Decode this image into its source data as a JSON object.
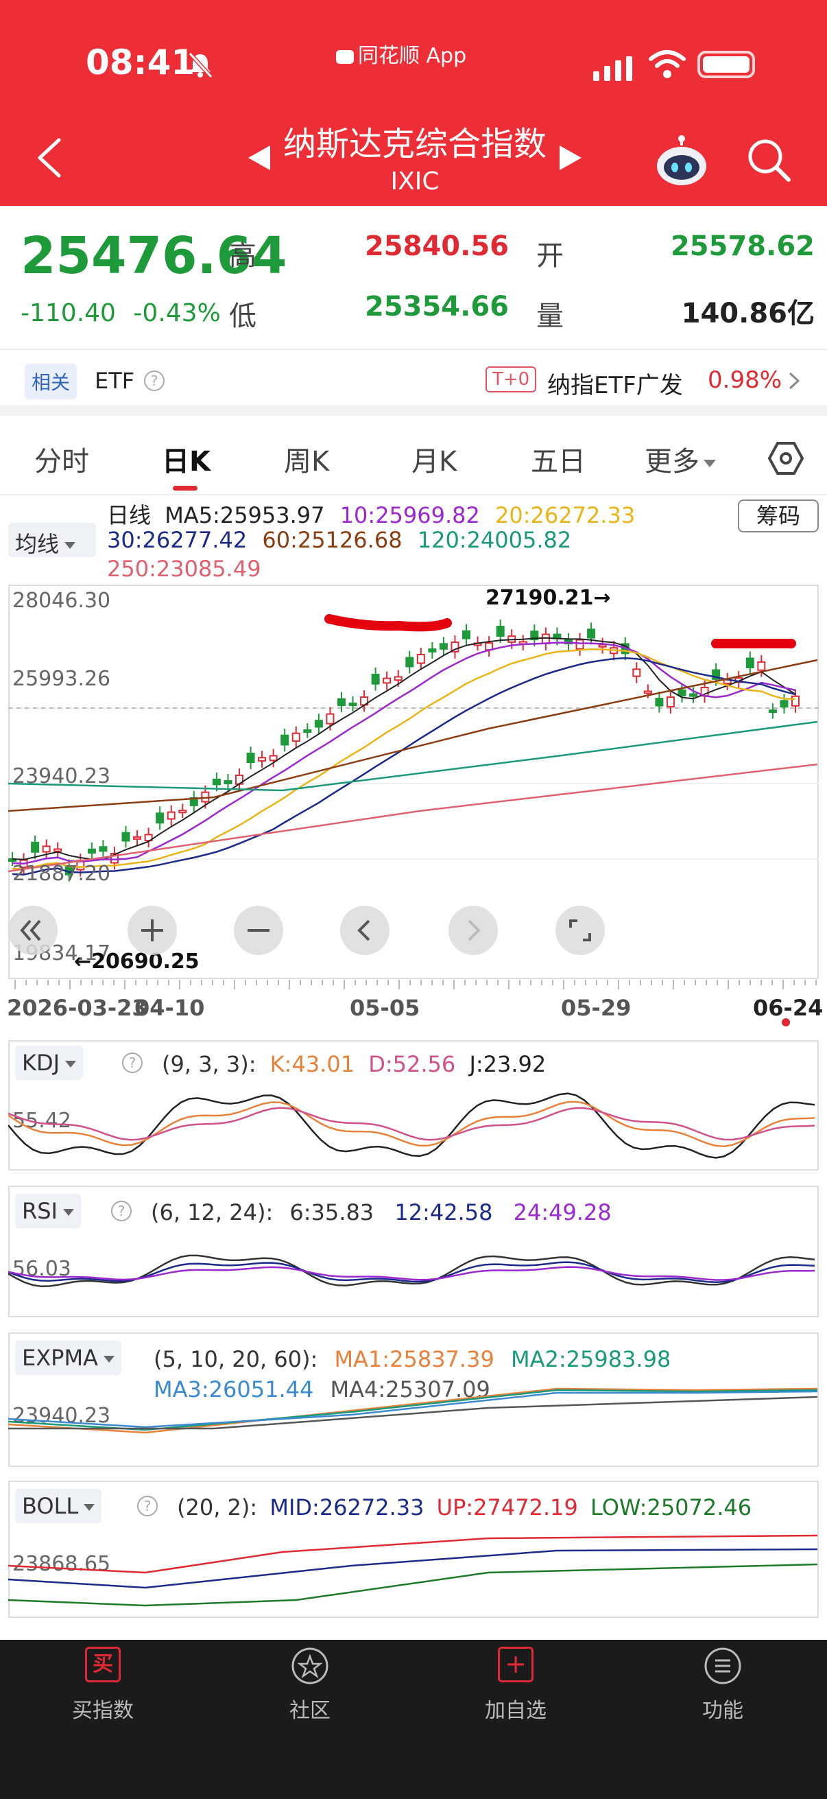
{
  "status_bar": {
    "time": "08:41",
    "app_label": "同花顺 App"
  },
  "header": {
    "title": "纳斯达克综合指数",
    "subtitle": "IXIC"
  },
  "quote": {
    "price": "25476.64",
    "change": "-110.40",
    "change_pct": "-0.43%",
    "high_label": "高",
    "high": "25840.56",
    "open_label": "开",
    "open": "25578.62",
    "low_label": "低",
    "low": "25354.66",
    "volume_label": "量",
    "volume": "140.86亿"
  },
  "etf_row": {
    "tag": "相关",
    "label": "ETF",
    "t0_tag": "T+0",
    "fund_name": "纳指ETF广发",
    "fund_pct": "0.98%"
  },
  "tabs": [
    "分时",
    "日K",
    "周K",
    "月K",
    "五日",
    "更多"
  ],
  "active_tab": "日K",
  "ma_select": "均线",
  "chip_button": "筹码",
  "ma_legend": {
    "period": "日线",
    "ma5": "MA5:25953.97",
    "ma10": "10:25969.82",
    "ma20": "20:26272.33",
    "ma30": "30:26277.42",
    "ma60": "60:25126.68",
    "ma120": "120:24005.82",
    "ma250": "250:23085.49"
  },
  "colors": {
    "red": "#e02a33",
    "green": "#1e9a3a",
    "ma5": "#222222",
    "ma10": "#9b28d0",
    "ma20": "#e8b417",
    "ma30": "#1b2a8a",
    "ma60": "#8b3d12",
    "ma120": "#1a9a7a",
    "ma250": "#e06070"
  },
  "main_axis": {
    "y_top": "28046.30",
    "y_mid1": "25993.26",
    "y_mid2": "23940.23",
    "y_low_partial": "21887.20",
    "y_bottom": "19834.17",
    "high_marker": "27190.21→",
    "low_marker": "←20690.25",
    "dates": [
      "2026-03-23",
      "04-10",
      "05-05",
      "05-29",
      "06-24"
    ]
  },
  "kdj": {
    "name": "KDJ",
    "params": "(9, 3, 3):",
    "k": "K:43.01",
    "d": "D:52.56",
    "j": "J:23.92",
    "axis": "55.42"
  },
  "rsi": {
    "name": "RSI",
    "params": "(6, 12, 24):",
    "r6": "6:35.83",
    "r12": "12:42.58",
    "r24": "24:49.28",
    "axis": "56.03"
  },
  "expma": {
    "name": "EXPMA",
    "params": "(5, 10, 20, 60):",
    "ma1": "MA1:25837.39",
    "ma2": "MA2:25983.98",
    "ma3": "MA3:26051.44",
    "ma4": "MA4:25307.09",
    "axis": "23940.23"
  },
  "boll": {
    "name": "BOLL",
    "params": "(20, 2):",
    "mid": "MID:26272.33",
    "up": "UP:27472.19",
    "low": "LOW:25072.46",
    "axis": "23868.65"
  },
  "bottom_nav": [
    {
      "label": "买指数",
      "icon": "买"
    },
    {
      "label": "社区",
      "icon": ""
    },
    {
      "label": "加自选",
      "icon": "+"
    },
    {
      "label": "功能",
      "icon": ""
    }
  ]
}
